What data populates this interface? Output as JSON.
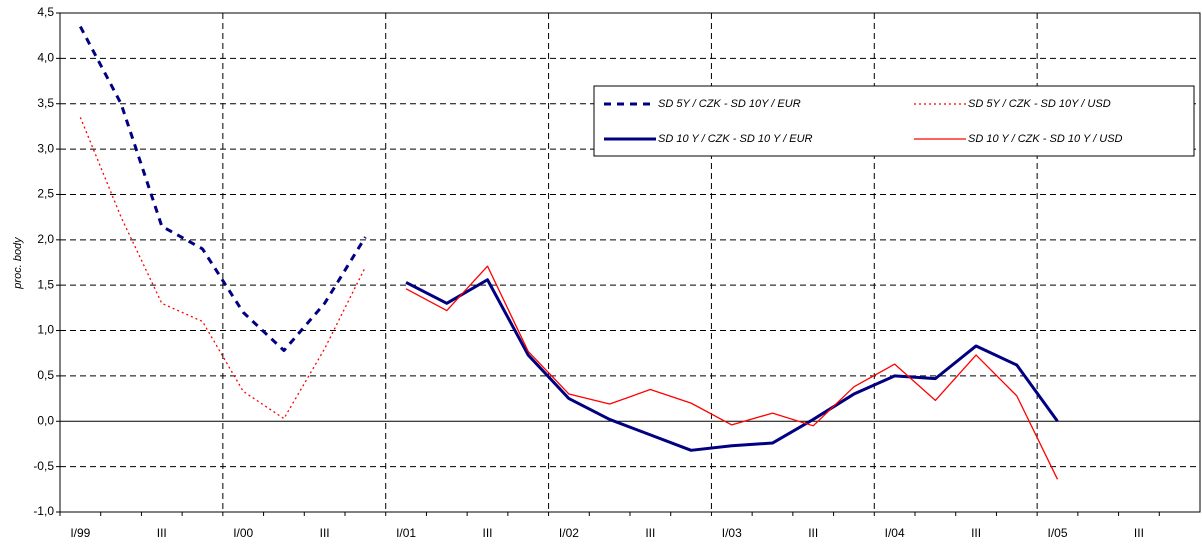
{
  "chart_data": {
    "type": "line",
    "y_label": "proc. body",
    "categories": [
      "I/99",
      null,
      "III",
      null,
      "I/00",
      null,
      "III",
      null,
      "I/01",
      null,
      "III",
      null,
      "I/02",
      null,
      "III",
      null,
      "I/03",
      null,
      "III",
      null,
      "I/04",
      null,
      "III",
      null,
      "I/05",
      null,
      "III",
      null
    ],
    "series": [
      {
        "name": "SD 5Y / CZK - SD 10Y / EUR",
        "color": "#000080",
        "line_style": "dashed",
        "line_width": 3,
        "values": [
          4.35,
          3.5,
          2.15,
          1.9,
          1.2,
          0.78,
          1.3,
          2.03,
          null,
          null,
          null,
          null,
          null,
          null,
          null,
          null,
          null,
          null,
          null,
          null,
          null,
          null,
          null,
          null,
          null,
          null,
          null,
          null
        ]
      },
      {
        "name": "SD 5Y / CZK - SD 10Y / USD",
        "color": "#ff0000",
        "line_style": "dotted",
        "line_width": 1.3,
        "values": [
          3.35,
          2.25,
          1.3,
          1.1,
          0.33,
          0.03,
          0.8,
          1.7,
          null,
          null,
          null,
          null,
          null,
          null,
          null,
          null,
          null,
          null,
          null,
          null,
          null,
          null,
          null,
          null,
          null,
          null,
          null,
          null
        ]
      },
      {
        "name": "SD 10 Y / CZK - SD 10 Y / EUR",
        "color": "#000080",
        "line_style": "solid",
        "line_width": 3,
        "values": [
          null,
          null,
          null,
          null,
          null,
          null,
          null,
          null,
          1.53,
          1.3,
          1.56,
          0.73,
          0.25,
          0.02,
          -0.15,
          -0.32,
          -0.27,
          -0.24,
          0.02,
          0.3,
          0.5,
          0.47,
          0.83,
          0.62,
          0.0,
          null,
          null,
          null
        ]
      },
      {
        "name": "SD 10 Y / CZK - SD 10 Y / USD",
        "color": "#ff0000",
        "line_style": "solid",
        "line_width": 1.3,
        "values": [
          null,
          null,
          null,
          null,
          null,
          null,
          null,
          null,
          1.46,
          1.22,
          1.71,
          0.77,
          0.3,
          0.19,
          0.35,
          0.2,
          -0.04,
          0.09,
          -0.05,
          0.38,
          0.63,
          0.23,
          0.73,
          0.28,
          -0.64,
          null,
          null,
          null
        ]
      }
    ],
    "ylim": [
      -1.0,
      4.5
    ],
    "yticks": [
      {
        "value": -1.0,
        "label": "-1,0"
      },
      {
        "value": -0.5,
        "label": "-0,5"
      },
      {
        "value": 0.0,
        "label": "0,0"
      },
      {
        "value": 0.5,
        "label": "0,5"
      },
      {
        "value": 1.0,
        "label": "1,0"
      },
      {
        "value": 1.5,
        "label": "1,5"
      },
      {
        "value": 2.0,
        "label": "2,0"
      },
      {
        "value": 2.5,
        "label": "2,5"
      },
      {
        "value": 3.0,
        "label": "3,0"
      },
      {
        "value": 3.5,
        "label": "3,5"
      },
      {
        "value": 4.0,
        "label": "4,0"
      },
      {
        "value": 4.5,
        "label": "4,5"
      }
    ],
    "grid": true,
    "legend": "upper right"
  }
}
